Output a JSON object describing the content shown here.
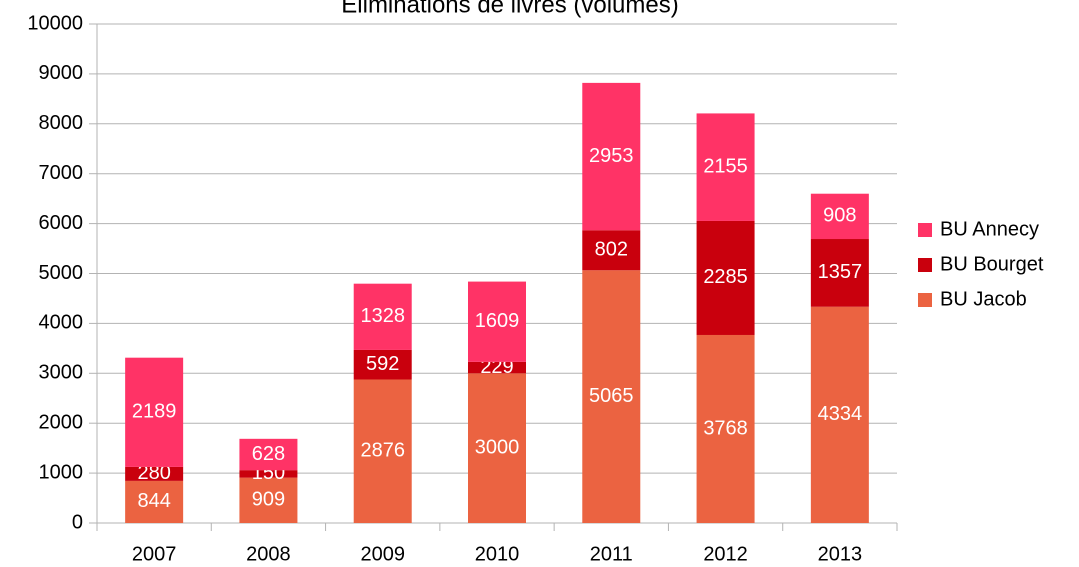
{
  "chart_data": {
    "type": "stacked_bar",
    "title": "Eliminations de livres (volumes)",
    "categories": [
      "2007",
      "2008",
      "2009",
      "2010",
      "2011",
      "2012",
      "2013"
    ],
    "series": [
      {
        "name": "BU Jacob",
        "color": "#eb6341",
        "values": [
          844,
          909,
          2876,
          3000,
          5065,
          3768,
          4334
        ]
      },
      {
        "name": "BU Bourget",
        "color": "#c9000d",
        "values": [
          280,
          150,
          592,
          229,
          802,
          2285,
          1357
        ]
      },
      {
        "name": "BU Annecy",
        "color": "#ff3366",
        "values": [
          2189,
          628,
          1328,
          1609,
          2953,
          2155,
          908
        ]
      }
    ],
    "ylim": [
      0,
      10000
    ],
    "yticks": [
      0,
      1000,
      2000,
      3000,
      4000,
      5000,
      6000,
      7000,
      8000,
      9000,
      10000
    ],
    "grid": true,
    "legend": "right"
  }
}
